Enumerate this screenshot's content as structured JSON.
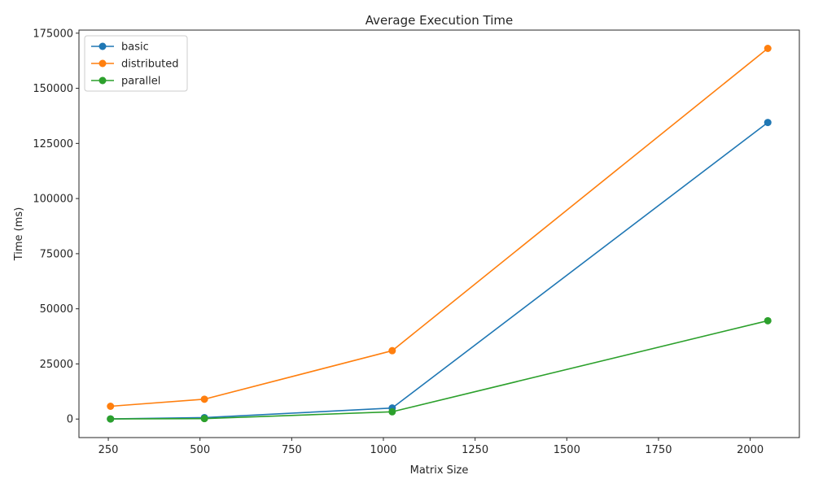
{
  "chart_data": {
    "type": "line",
    "title": "Average Execution Time",
    "xlabel": "Matrix Size",
    "ylabel": "Time (ms)",
    "x": [
      256,
      512,
      1024,
      2048
    ],
    "xlim": [
      170,
      2134
    ],
    "ylim": [
      -8400,
      176400
    ],
    "xticks": [
      250,
      500,
      750,
      1000,
      1250,
      1500,
      1750,
      2000
    ],
    "yticks": [
      0,
      25000,
      50000,
      75000,
      100000,
      125000,
      150000,
      175000
    ],
    "grid": false,
    "legend_position": "top-left",
    "series": [
      {
        "name": "basic",
        "color": "#1f77b4",
        "values": [
          60,
          650,
          5000,
          134500
        ]
      },
      {
        "name": "distributed",
        "color": "#ff7f0e",
        "values": [
          5800,
          9000,
          31000,
          168100
        ]
      },
      {
        "name": "parallel",
        "color": "#2ca02c",
        "values": [
          50,
          200,
          3300,
          44600
        ]
      }
    ]
  }
}
